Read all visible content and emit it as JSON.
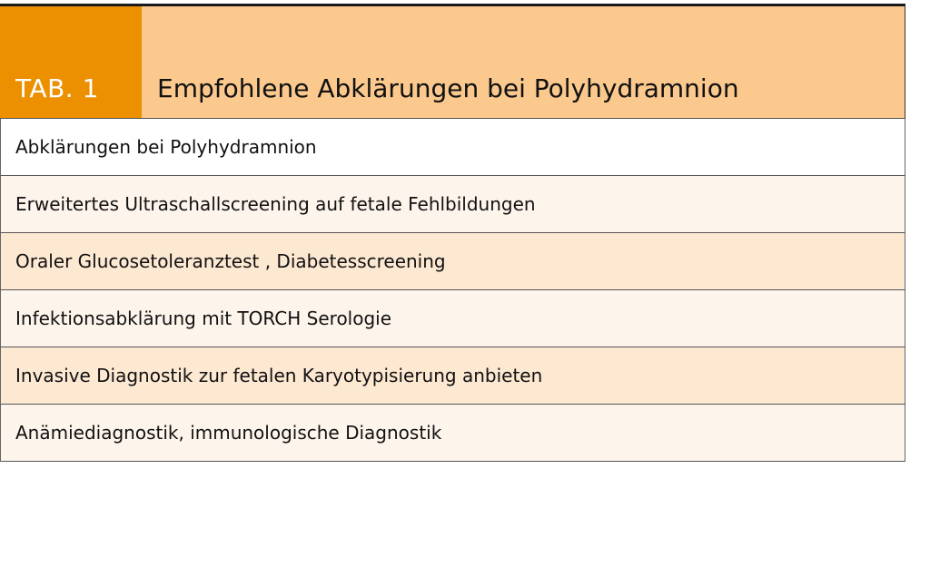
{
  "table": {
    "label": "TAB. 1",
    "title": "Empfohlene Abklärungen bei Polyhydramnion",
    "rows": [
      "Abklärungen bei Polyhydramnion",
      "Erweitertes Ultraschallscreening auf fetale Fehlbildungen",
      "Oraler Glucosetoleranztest , Diabetesscreening",
      "Infektionsabklärung mit TORCH Serologie",
      "Invasive Diagnostik zur fetalen Karyotypisierung anbieten",
      "Anämiediagnostik, immunologische Diagnostik"
    ],
    "colors": {
      "label_bg": "#ec9000",
      "title_bg": "#fbc98d",
      "row_light": "#fdf4ec",
      "row_dark": "#fde8d2"
    }
  }
}
